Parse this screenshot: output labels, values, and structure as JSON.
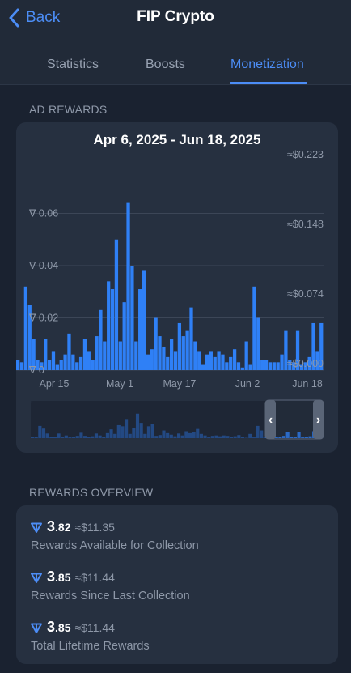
{
  "header": {
    "back_label": "Back",
    "title": "FIP Crypto",
    "tabs": [
      "Statistics",
      "Boosts",
      "Monetization"
    ],
    "active_tab": "Monetization"
  },
  "ad_rewards": {
    "section_label": "AD REWARDS",
    "chart_title": "Apr 6, 2025 - Jun 18, 2025"
  },
  "chart_data": {
    "type": "bar",
    "title": "Apr 6, 2025 - Jun 18, 2025",
    "x_start": "2025-04-06",
    "x_end": "2025-06-18",
    "x_ticks": [
      "Apr 15",
      "May 1",
      "May 17",
      "Jun 2",
      "Jun 18"
    ],
    "y_left_ticks": [
      "0",
      "0.02",
      "0.04",
      "0.06"
    ],
    "y_right_ticks": [
      "≈$0.000",
      "≈$0.074",
      "≈$0.148",
      "≈$0.223"
    ],
    "ylim": [
      0,
      0.08
    ],
    "color": "#2f80f6",
    "grid": true,
    "values": [
      0.004,
      0.003,
      0.032,
      0.025,
      0.012,
      0.004,
      0.003,
      0.012,
      0.004,
      0.007,
      0.002,
      0.004,
      0.006,
      0.014,
      0.006,
      0.003,
      0.005,
      0.012,
      0.007,
      0.004,
      0.013,
      0.023,
      0.011,
      0.034,
      0.031,
      0.05,
      0.011,
      0.026,
      0.064,
      0.04,
      0.011,
      0.031,
      0.038,
      0.006,
      0.008,
      0.02,
      0.013,
      0.009,
      0.005,
      0.012,
      0.007,
      0.018,
      0.013,
      0.015,
      0.024,
      0.011,
      0.007,
      0.002,
      0.006,
      0.007,
      0.005,
      0.007,
      0.006,
      0.003,
      0.005,
      0.008,
      0.003,
      0.001,
      0.011,
      0.002,
      0.032,
      0.02,
      0.004,
      0.004,
      0.003,
      0.003,
      0.003,
      0.006,
      0.015,
      0.004,
      0.003,
      0.015,
      0.002,
      0.003,
      0.005,
      0.018,
      0.007,
      0.018
    ]
  },
  "navigator": {
    "left_handle": "‹",
    "right_handle": "›"
  },
  "rewards_overview": {
    "section_label": "REWARDS OVERVIEW",
    "items": [
      {
        "int": "3",
        "dec": ".82",
        "usd": "≈$11.35",
        "label": "Rewards Available for Collection"
      },
      {
        "int": "3",
        "dec": ".85",
        "usd": "≈$11.44",
        "label": "Rewards Since Last Collection"
      },
      {
        "int": "3",
        "dec": ".85",
        "usd": "≈$11.44",
        "label": "Total Lifetime Rewards"
      }
    ]
  },
  "colors": {
    "accent": "#4c8df6",
    "bar": "#2f80f6",
    "background": "#1a2230",
    "card": "#263040"
  }
}
